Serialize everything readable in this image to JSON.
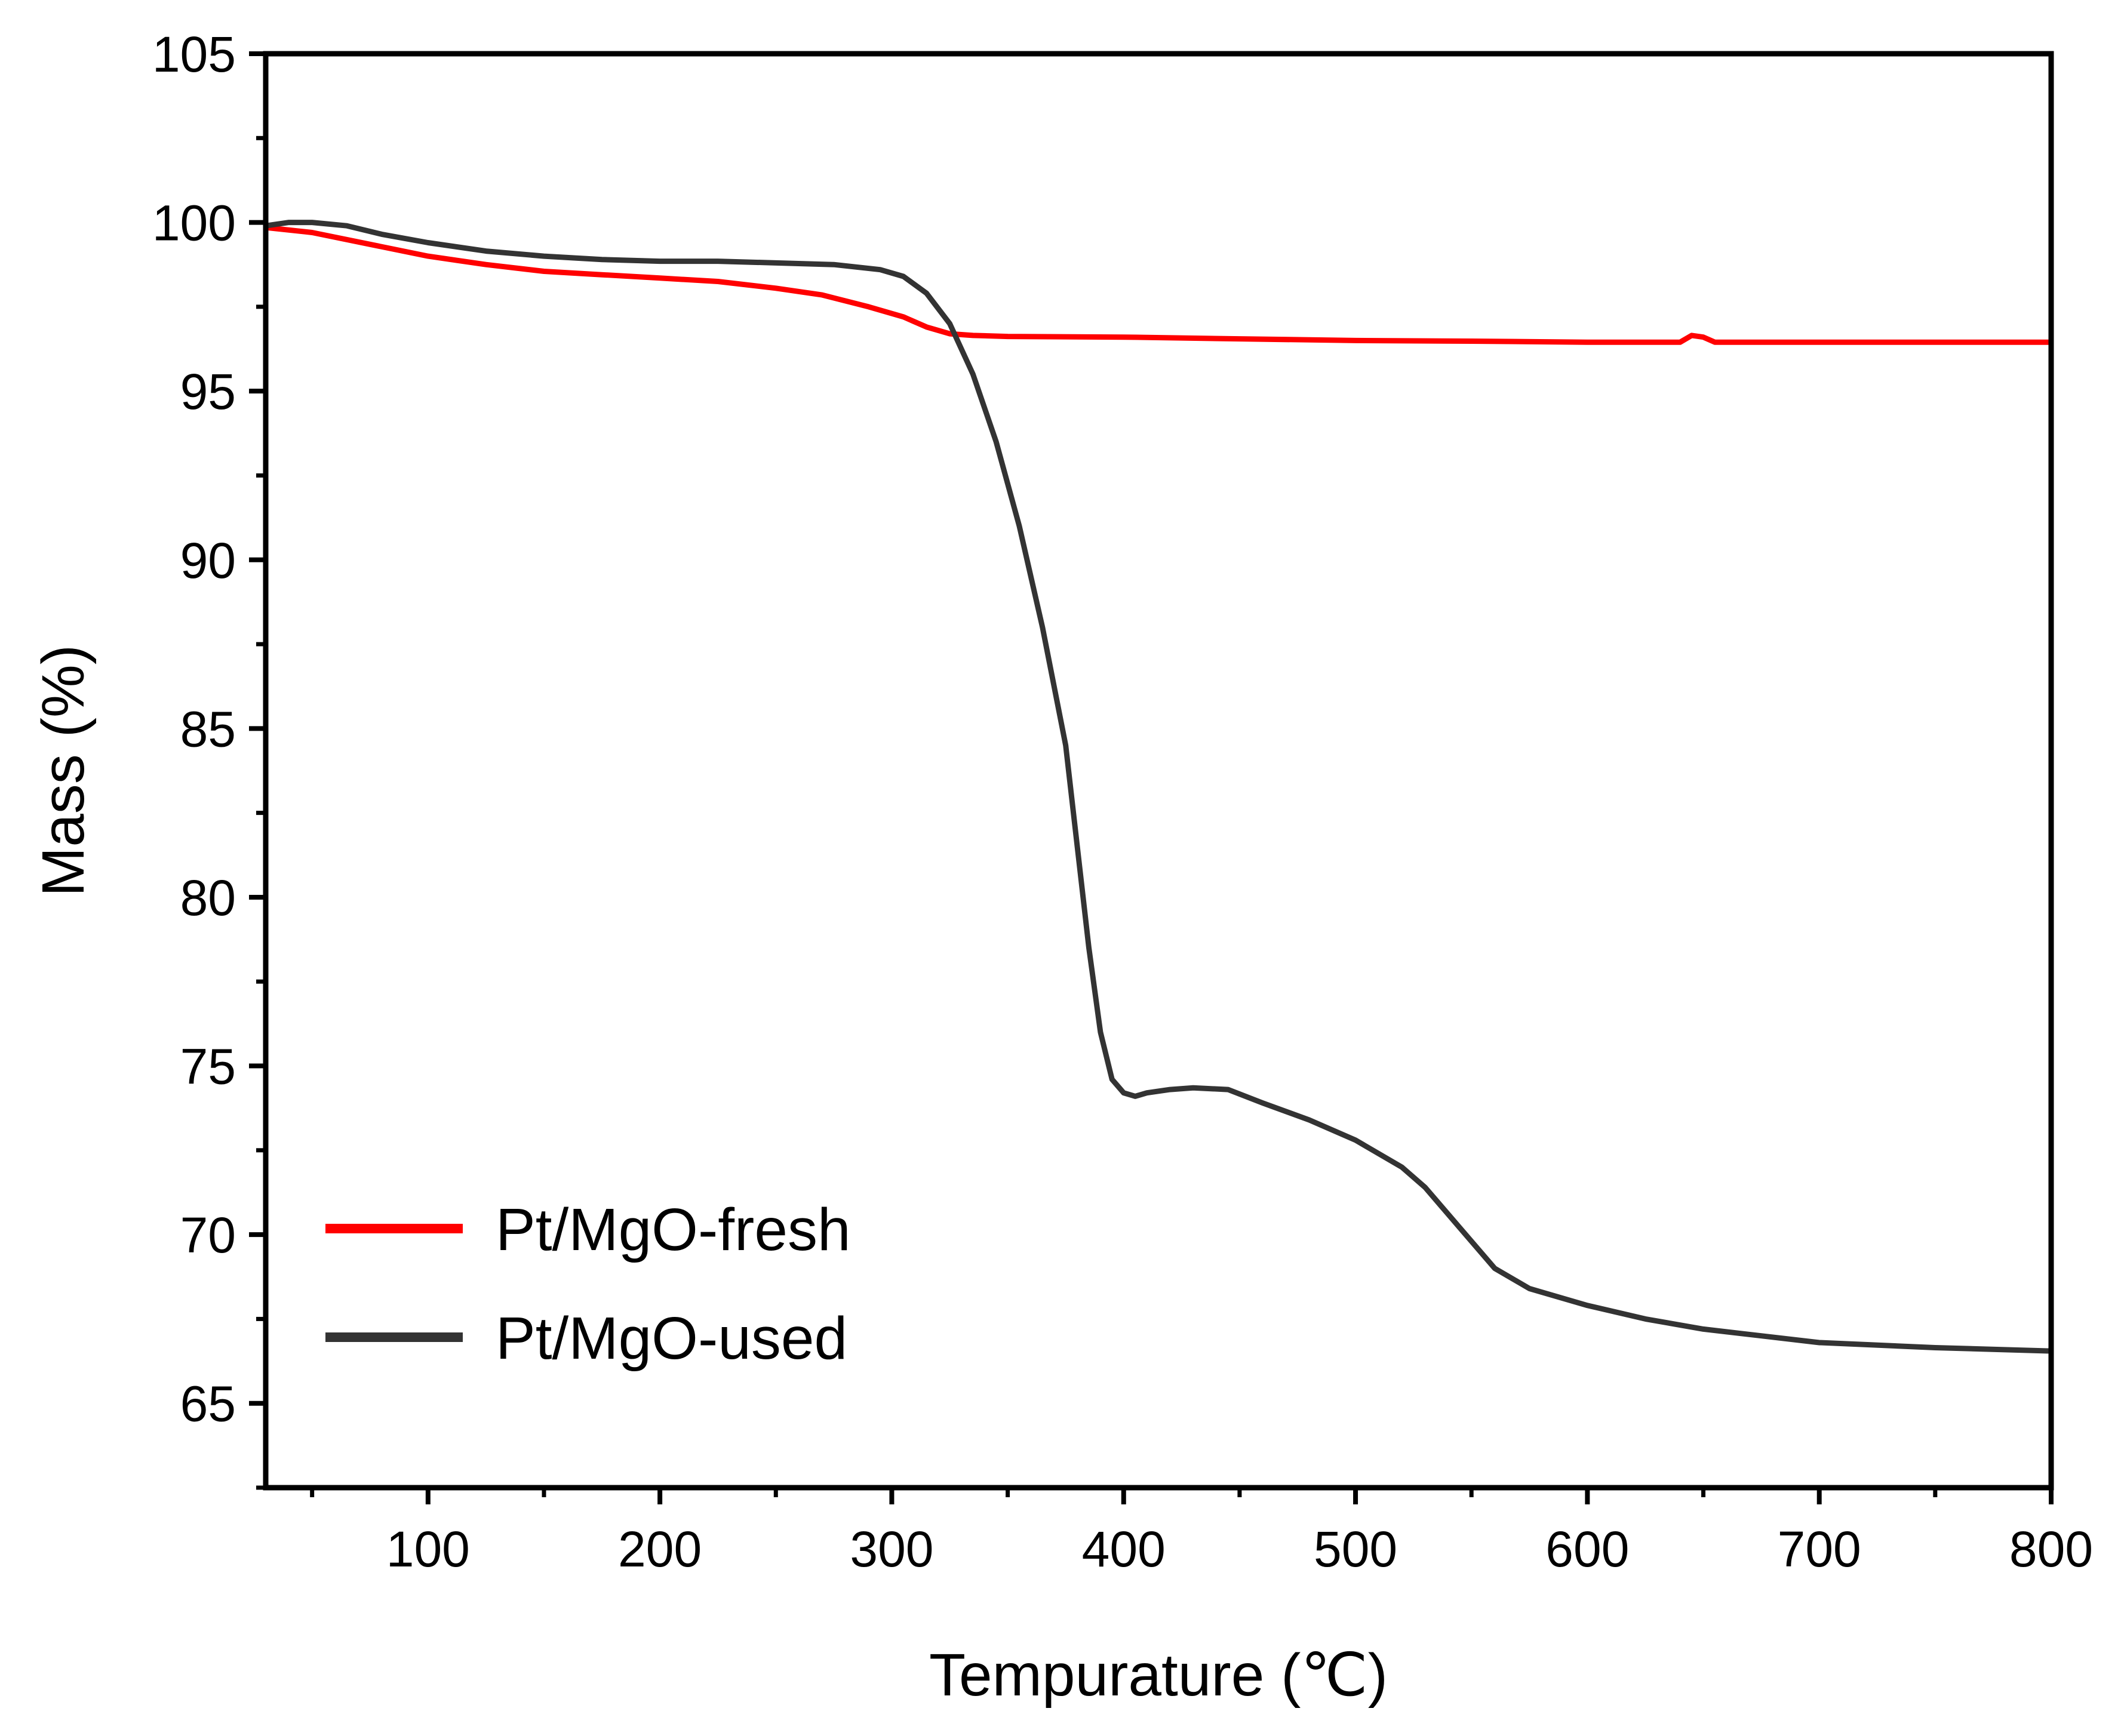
{
  "chart_data": {
    "type": "line",
    "title": "",
    "xlabel": "Tempurature (℃)",
    "ylabel": "Mass (%)",
    "xlim": [
      30,
      800
    ],
    "ylim": [
      62.5,
      105
    ],
    "x_ticks": [
      100,
      200,
      300,
      400,
      500,
      600,
      700,
      800
    ],
    "x_tick_labels": [
      "100",
      "200",
      "300",
      "400",
      "500",
      "600",
      "700",
      "800"
    ],
    "y_ticks": [
      65,
      70,
      75,
      80,
      85,
      90,
      95,
      100,
      105
    ],
    "y_tick_labels": [
      "65",
      "70",
      "75",
      "80",
      "85",
      "90",
      "95",
      "100",
      "105"
    ],
    "grid": false,
    "legend_position": "bottom-left",
    "series": [
      {
        "name": "Pt/MgO-fresh",
        "color": "#ff0000",
        "x": [
          30,
          50,
          75,
          100,
          125,
          150,
          175,
          200,
          225,
          250,
          270,
          290,
          305,
          315,
          325,
          335,
          350,
          400,
          450,
          500,
          550,
          600,
          640,
          645,
          650,
          655,
          700,
          750,
          800
        ],
        "y": [
          99.85,
          99.7,
          99.35,
          99.0,
          98.75,
          98.55,
          98.45,
          98.35,
          98.25,
          98.05,
          97.85,
          97.5,
          97.2,
          96.9,
          96.7,
          96.65,
          96.62,
          96.6,
          96.55,
          96.5,
          96.48,
          96.45,
          96.45,
          96.65,
          96.6,
          96.45,
          96.45,
          96.45,
          96.45
        ]
      },
      {
        "name": "Pt/MgO-used",
        "color": "#333333",
        "x": [
          30,
          40,
          50,
          65,
          80,
          100,
          125,
          150,
          175,
          200,
          225,
          250,
          275,
          295,
          305,
          315,
          325,
          335,
          345,
          355,
          365,
          375,
          380,
          385,
          390,
          395,
          400,
          405,
          410,
          420,
          430,
          445,
          460,
          480,
          500,
          520,
          530,
          545,
          560,
          575,
          600,
          625,
          650,
          675,
          700,
          750,
          800
        ],
        "y": [
          99.9,
          100.0,
          100.0,
          99.9,
          99.65,
          99.4,
          99.15,
          99.0,
          98.9,
          98.85,
          98.85,
          98.8,
          98.75,
          98.6,
          98.4,
          97.9,
          97.0,
          95.5,
          93.5,
          91.0,
          88.0,
          84.5,
          81.5,
          78.5,
          76.0,
          74.6,
          74.2,
          74.1,
          74.2,
          74.3,
          74.35,
          74.3,
          73.9,
          73.4,
          72.8,
          72.0,
          71.4,
          70.2,
          69.0,
          68.4,
          67.9,
          67.5,
          67.2,
          67.0,
          66.8,
          66.65,
          66.55
        ]
      }
    ]
  }
}
